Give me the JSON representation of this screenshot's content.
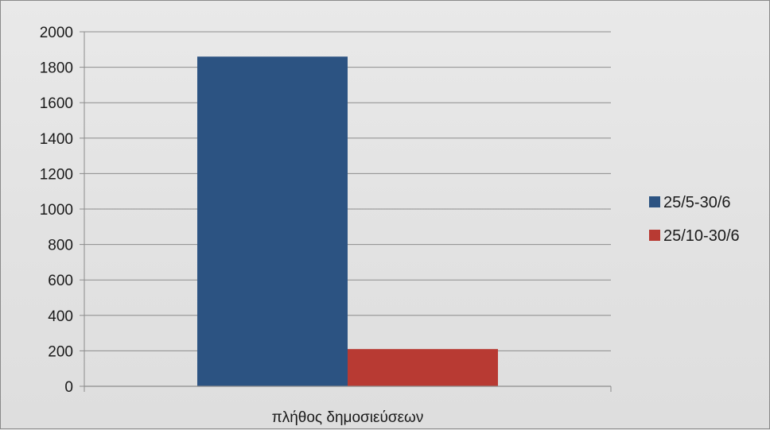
{
  "chart_data": {
    "type": "bar",
    "title": "",
    "xlabel": "",
    "ylabel": "",
    "categories": [
      "πλήθος δημοσιεύσεων"
    ],
    "series": [
      {
        "name": "25/5-30/6",
        "values": [
          1860
        ],
        "color": "#2c5382"
      },
      {
        "name": "25/10-30/6",
        "values": [
          210
        ],
        "color": "#b83a33"
      }
    ],
    "ylim": [
      0,
      2000
    ],
    "yticks": [
      0,
      200,
      400,
      600,
      800,
      1000,
      1200,
      1400,
      1600,
      1800,
      2000
    ],
    "grid": true,
    "legend_position": "right"
  }
}
